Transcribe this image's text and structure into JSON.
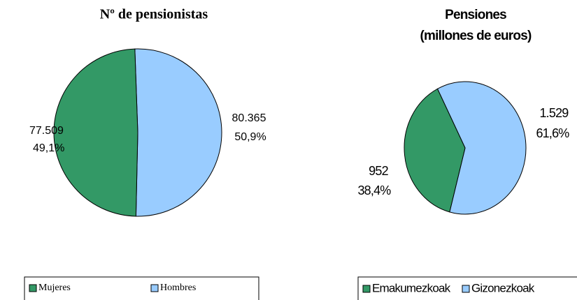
{
  "chart_data": [
    {
      "type": "pie",
      "title": [
        "Nº de pensionistas"
      ],
      "categories": [
        "Mujeres",
        "Hombres"
      ],
      "values": [
        77509,
        80365
      ],
      "value_labels": [
        "77.509",
        "80.365"
      ],
      "percents": [
        49.1,
        50.9
      ],
      "percent_labels": [
        "49,1%",
        "50,9%"
      ],
      "colors": [
        "#339966",
        "#99ccff"
      ],
      "legend": "bottom"
    },
    {
      "type": "pie",
      "title": [
        "Pensiones",
        "(millones de euros)"
      ],
      "categories": [
        "Emakumezkoak",
        "Gizonezkoak"
      ],
      "values": [
        952,
        1529
      ],
      "value_labels": [
        "952",
        "1.529"
      ],
      "percents": [
        38.4,
        61.6
      ],
      "percent_labels": [
        "38,4%",
        "61,6%"
      ],
      "colors": [
        "#339966",
        "#99ccff"
      ],
      "legend": "bottom"
    }
  ]
}
